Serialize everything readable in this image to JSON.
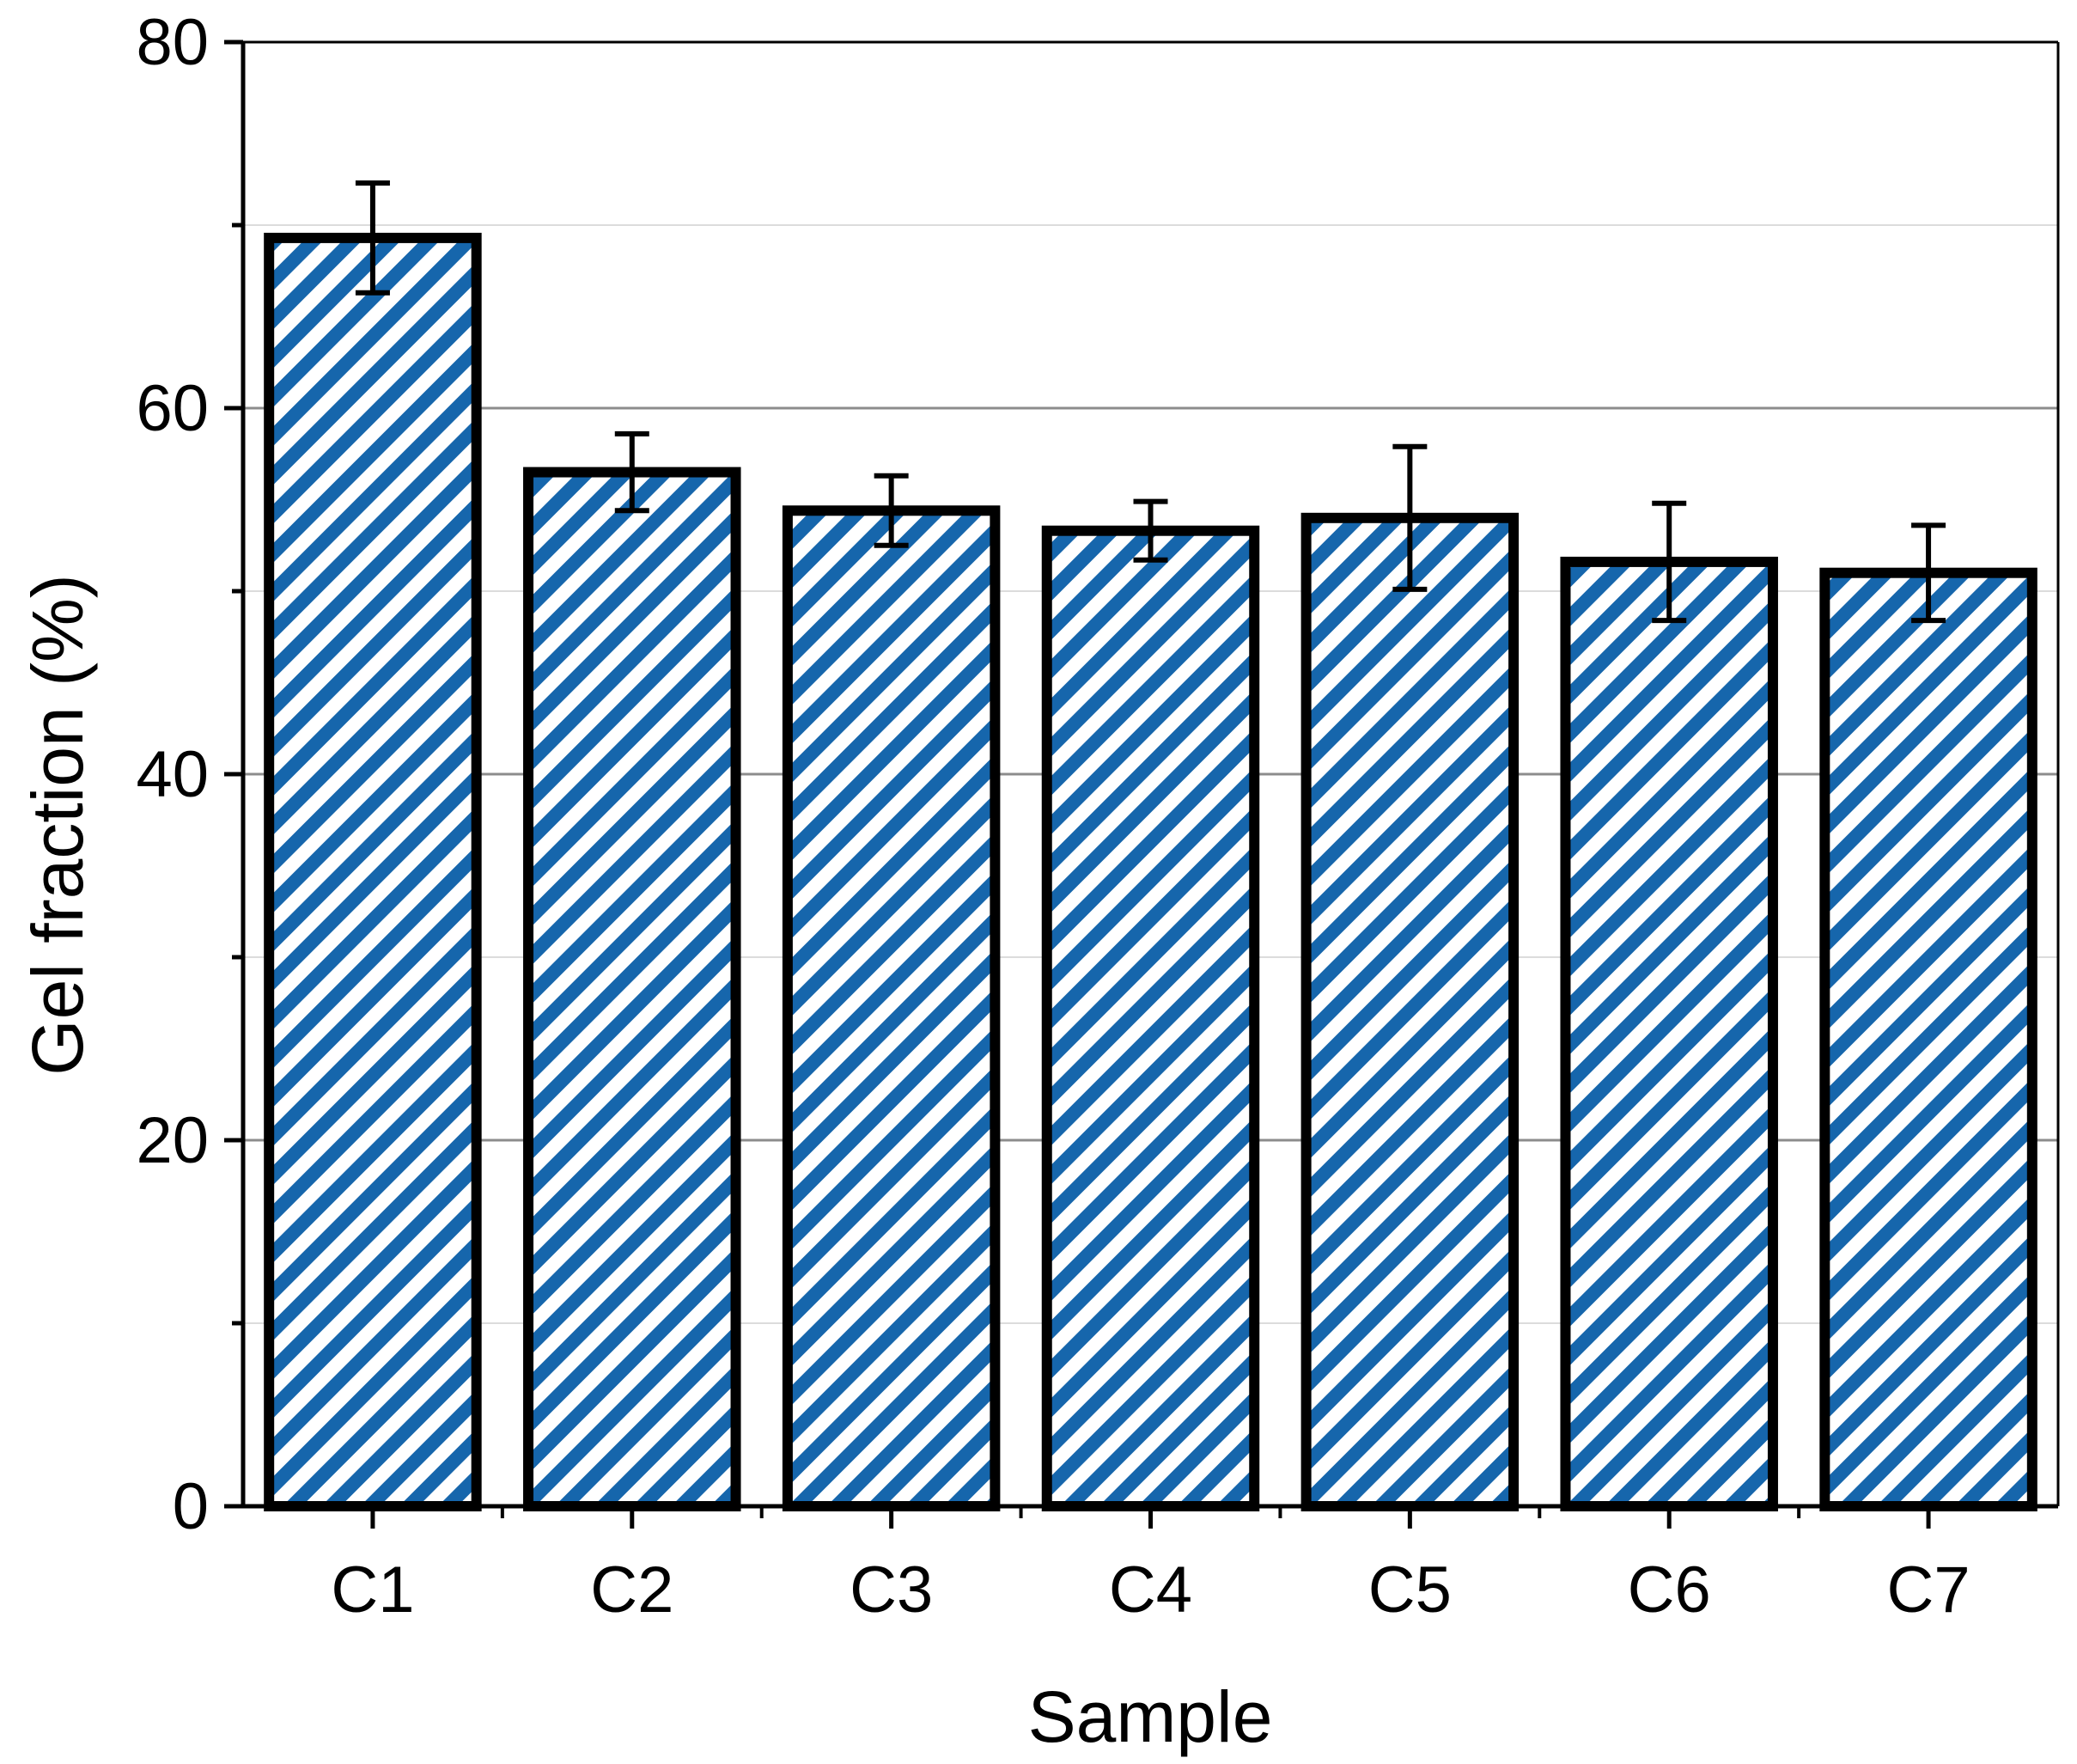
{
  "chart_data": {
    "type": "bar",
    "title": "",
    "xlabel": "Sample",
    "ylabel": "Gel fraction (%)",
    "categories": [
      "C1",
      "C2",
      "C3",
      "C4",
      "C5",
      "C6",
      "C7"
    ],
    "values": [
      69.3,
      56.5,
      54.4,
      53.3,
      54.0,
      51.6,
      51.0
    ],
    "errors": [
      3.0,
      2.1,
      1.9,
      1.6,
      3.9,
      3.2,
      2.6
    ],
    "ylim": [
      0,
      80
    ],
    "yticks": [
      0,
      20,
      40,
      60,
      80
    ],
    "grid": true,
    "bar_fill": "hatched",
    "colors": {
      "hatch": "#1666ac",
      "bar_background": "#ffffff",
      "bar_border": "#000000",
      "grid_major": "#8c8c8c",
      "grid_minor": "#dcdcdc"
    }
  }
}
